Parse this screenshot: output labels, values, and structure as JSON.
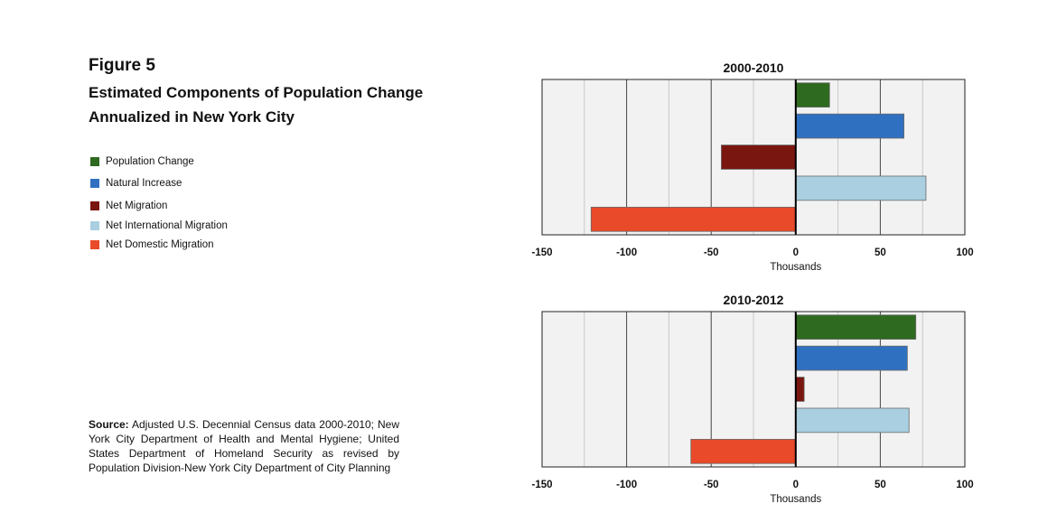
{
  "figure": {
    "label": "Figure 5",
    "title": "Estimated Components of Population Change Annualized in New York City"
  },
  "legend": [
    {
      "label": "Population Change",
      "color": "#2e6a1f"
    },
    {
      "label": "Natural Increase",
      "color": "#3070c0"
    },
    {
      "label": "Net Migration",
      "color": "#7a1610"
    },
    {
      "label": "Net International Migration",
      "color": "#a9cfe0"
    },
    {
      "label": "Net Domestic Migration",
      "color": "#e84a2a"
    }
  ],
  "source": {
    "prefix": "Source:",
    "text": "Adjusted U.S. Decennial Census data 2000-2010; New York City Department of Health and Mental Hygiene;  United States Department of Homeland Security as revised by Population Division-New York City Department of City Planning"
  },
  "chart_data": [
    {
      "type": "bar",
      "orientation": "horizontal",
      "title": "2000-2010",
      "xlabel": "Thousands",
      "xlim": [
        -150,
        100
      ],
      "xticks": [
        -150,
        -100,
        -50,
        0,
        50,
        100
      ],
      "categories": [
        "Population Change",
        "Natural Increase",
        "Net Migration",
        "Net International Migration",
        "Net Domestic Migration"
      ],
      "values": [
        20,
        64,
        -44,
        77,
        -121
      ],
      "colors": [
        "#2e6a1f",
        "#3070c0",
        "#7a1610",
        "#a9cfe0",
        "#e84a2a"
      ],
      "grid": true
    },
    {
      "type": "bar",
      "orientation": "horizontal",
      "title": "2010-2012",
      "xlabel": "Thousands",
      "xlim": [
        -150,
        100
      ],
      "xticks": [
        -150,
        -100,
        -50,
        0,
        50,
        100
      ],
      "categories": [
        "Population Change",
        "Natural Increase",
        "Net Migration",
        "Net International Migration",
        "Net Domestic Migration"
      ],
      "values": [
        71,
        66,
        5,
        67,
        -62
      ],
      "colors": [
        "#2e6a1f",
        "#3070c0",
        "#7a1610",
        "#a9cfe0",
        "#e84a2a"
      ],
      "grid": true
    }
  ]
}
